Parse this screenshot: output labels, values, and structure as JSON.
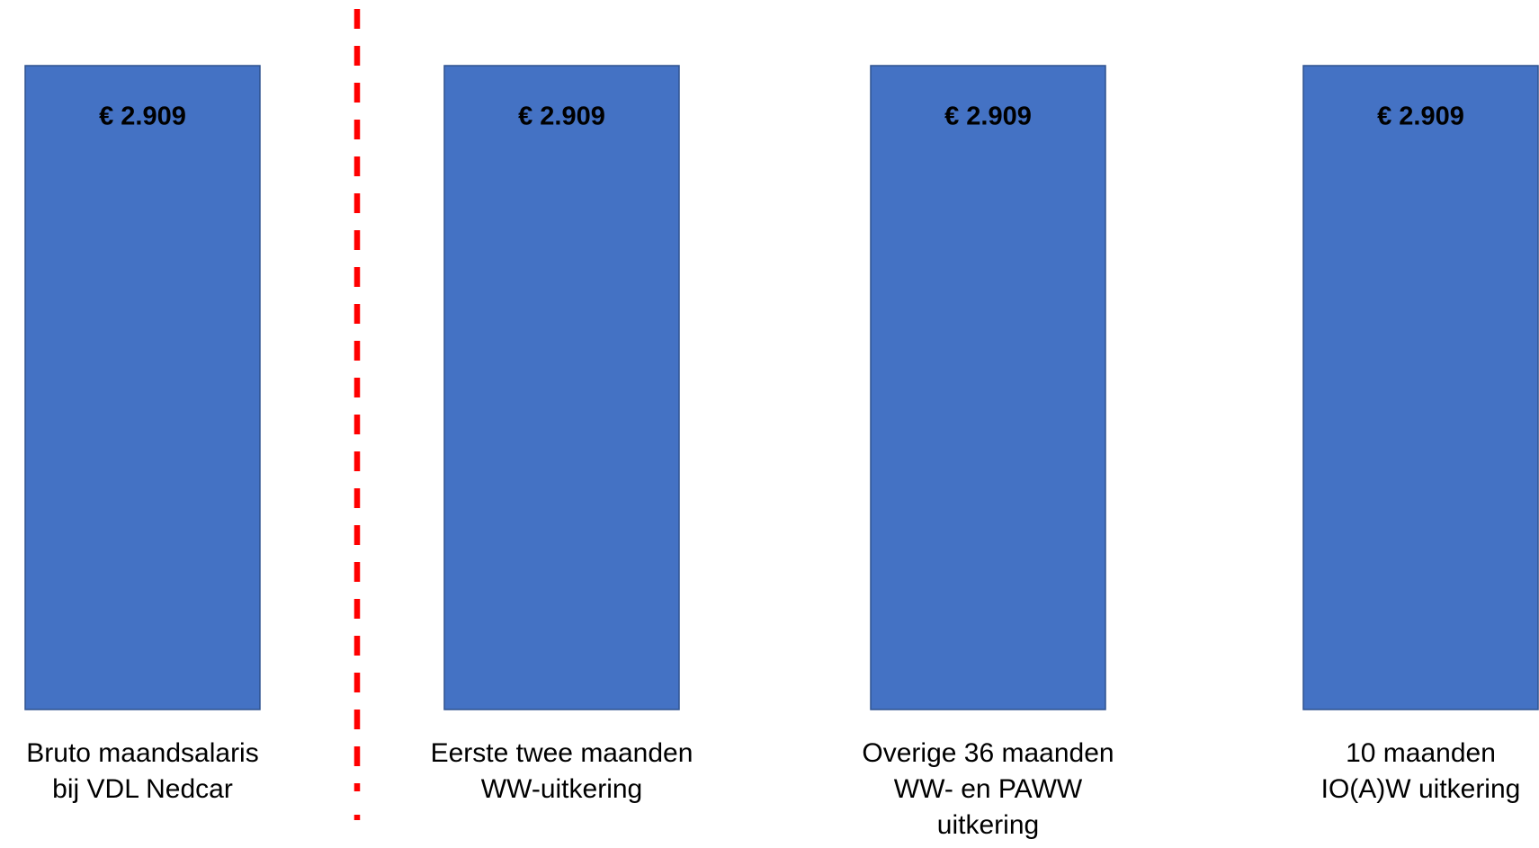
{
  "chart_data": {
    "type": "bar",
    "categories": [
      [
        "Bruto maandsalaris",
        "bij VDL Nedcar"
      ],
      [
        "Eerste twee maanden",
        "WW-uitkering"
      ],
      [
        "Overige 36 maanden",
        "WW- en PAWW",
        "uitkering"
      ],
      [
        "10 maanden",
        "IO(A)W uitkering"
      ]
    ],
    "values": [
      2909,
      2909,
      2909,
      2909
    ],
    "value_labels": [
      "€ 2.909",
      "€ 2.909",
      "€ 2.909",
      "€ 2.909"
    ],
    "color": "#4472c4"
  }
}
